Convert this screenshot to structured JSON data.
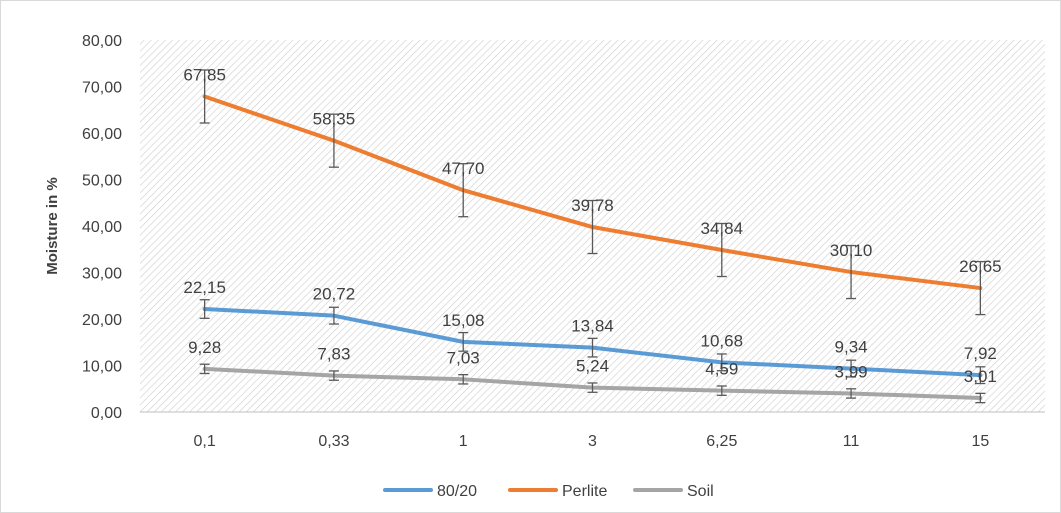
{
  "chart_data": {
    "type": "line",
    "title": "",
    "xlabel": "",
    "ylabel": "Moisture in %",
    "categories": [
      "0,1",
      "0,33",
      "1",
      "3",
      "6,25",
      "11",
      "15"
    ],
    "ylim": [
      0,
      80
    ],
    "yticks": [
      "0,00",
      "10,00",
      "20,00",
      "30,00",
      "40,00",
      "50,00",
      "60,00",
      "70,00",
      "80,00"
    ],
    "grid": "hatched plot area",
    "legend_position": "bottom",
    "series": [
      {
        "name": "80/20",
        "color": "#5B9BD5",
        "values": [
          22.15,
          20.72,
          15.08,
          13.84,
          10.68,
          9.34,
          7.92
        ],
        "labels": [
          "22,15",
          "20,72",
          "15,08",
          "13,84",
          "10,68",
          "9,34",
          "7,92"
        ],
        "error": [
          2.0,
          1.8,
          2.0,
          2.0,
          1.8,
          1.8,
          1.8
        ]
      },
      {
        "name": "Perlite",
        "color": "#ED7D31",
        "values": [
          67.85,
          58.35,
          47.7,
          39.78,
          34.84,
          30.1,
          26.65
        ],
        "labels": [
          "67,85",
          "58,35",
          "47,70",
          "39,78",
          "34,84",
          "30,10",
          "26,65"
        ],
        "error": [
          5.7,
          5.7,
          5.7,
          5.7,
          5.7,
          5.7,
          5.7
        ]
      },
      {
        "name": "Soil",
        "color": "#A5A5A5",
        "values": [
          9.28,
          7.83,
          7.03,
          5.24,
          4.59,
          3.99,
          3.01
        ],
        "labels": [
          "9,28",
          "7,83",
          "7,03",
          "5,24",
          "4,59",
          "3,99",
          "3,01"
        ],
        "error": [
          1.0,
          1.0,
          1.0,
          1.0,
          1.0,
          1.0,
          1.0
        ]
      }
    ]
  }
}
